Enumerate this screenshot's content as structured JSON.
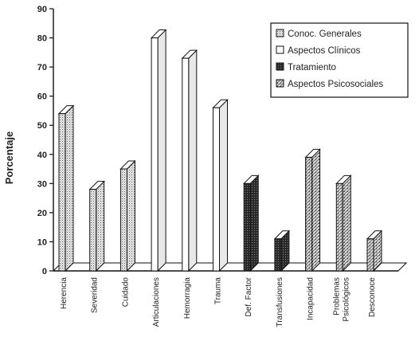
{
  "chart_data": {
    "type": "bar",
    "ylabel": "Porcentaje",
    "xlabel": "",
    "ylim": [
      0,
      90
    ],
    "yticks": [
      0,
      10,
      20,
      30,
      40,
      50,
      60,
      70,
      80,
      90
    ],
    "legend_position": "top-right",
    "style": "3d",
    "categories": [
      "Herencia",
      "Severidad",
      "Cuidado",
      "Articulaciones",
      "Hemorragia",
      "Trauma",
      "Def. Factor",
      "Transfusiones",
      "Incapacidad",
      "Problemas Psicológicos",
      "Desconoce"
    ],
    "category_labels": [
      [
        "Herencia"
      ],
      [
        "Severidad"
      ],
      [
        "Cuidado"
      ],
      [
        "Articulaciones"
      ],
      [
        "Hemorragia"
      ],
      [
        "Trauma"
      ],
      [
        "Def. Factor"
      ],
      [
        "Transfusiones"
      ],
      [
        "Incapacidad"
      ],
      [
        "Problemas",
        "Psicológicos"
      ],
      [
        "Desconoce"
      ]
    ],
    "series": [
      {
        "name": "Conoc. Generales",
        "values": [
          54,
          28,
          35,
          null,
          null,
          null,
          null,
          null,
          null,
          null,
          null
        ]
      },
      {
        "name": "Aspectos Clínicos",
        "values": [
          null,
          null,
          null,
          80,
          73,
          56,
          null,
          null,
          null,
          null,
          null
        ]
      },
      {
        "name": "Tratamiento",
        "values": [
          null,
          null,
          null,
          null,
          null,
          null,
          30,
          11,
          null,
          null,
          null
        ]
      },
      {
        "name": "Aspectos Psicosociales",
        "values": [
          null,
          null,
          null,
          null,
          null,
          null,
          null,
          null,
          39,
          30,
          11
        ]
      }
    ]
  },
  "colors": {
    "Conoc. Generales": "#dcdcdc",
    "Aspectos Clínicos": "#ffffff",
    "Tratamiento": "#3a3a3a",
    "Aspectos Psicosociales": "#c4c4c4",
    "axis": "#111111"
  }
}
